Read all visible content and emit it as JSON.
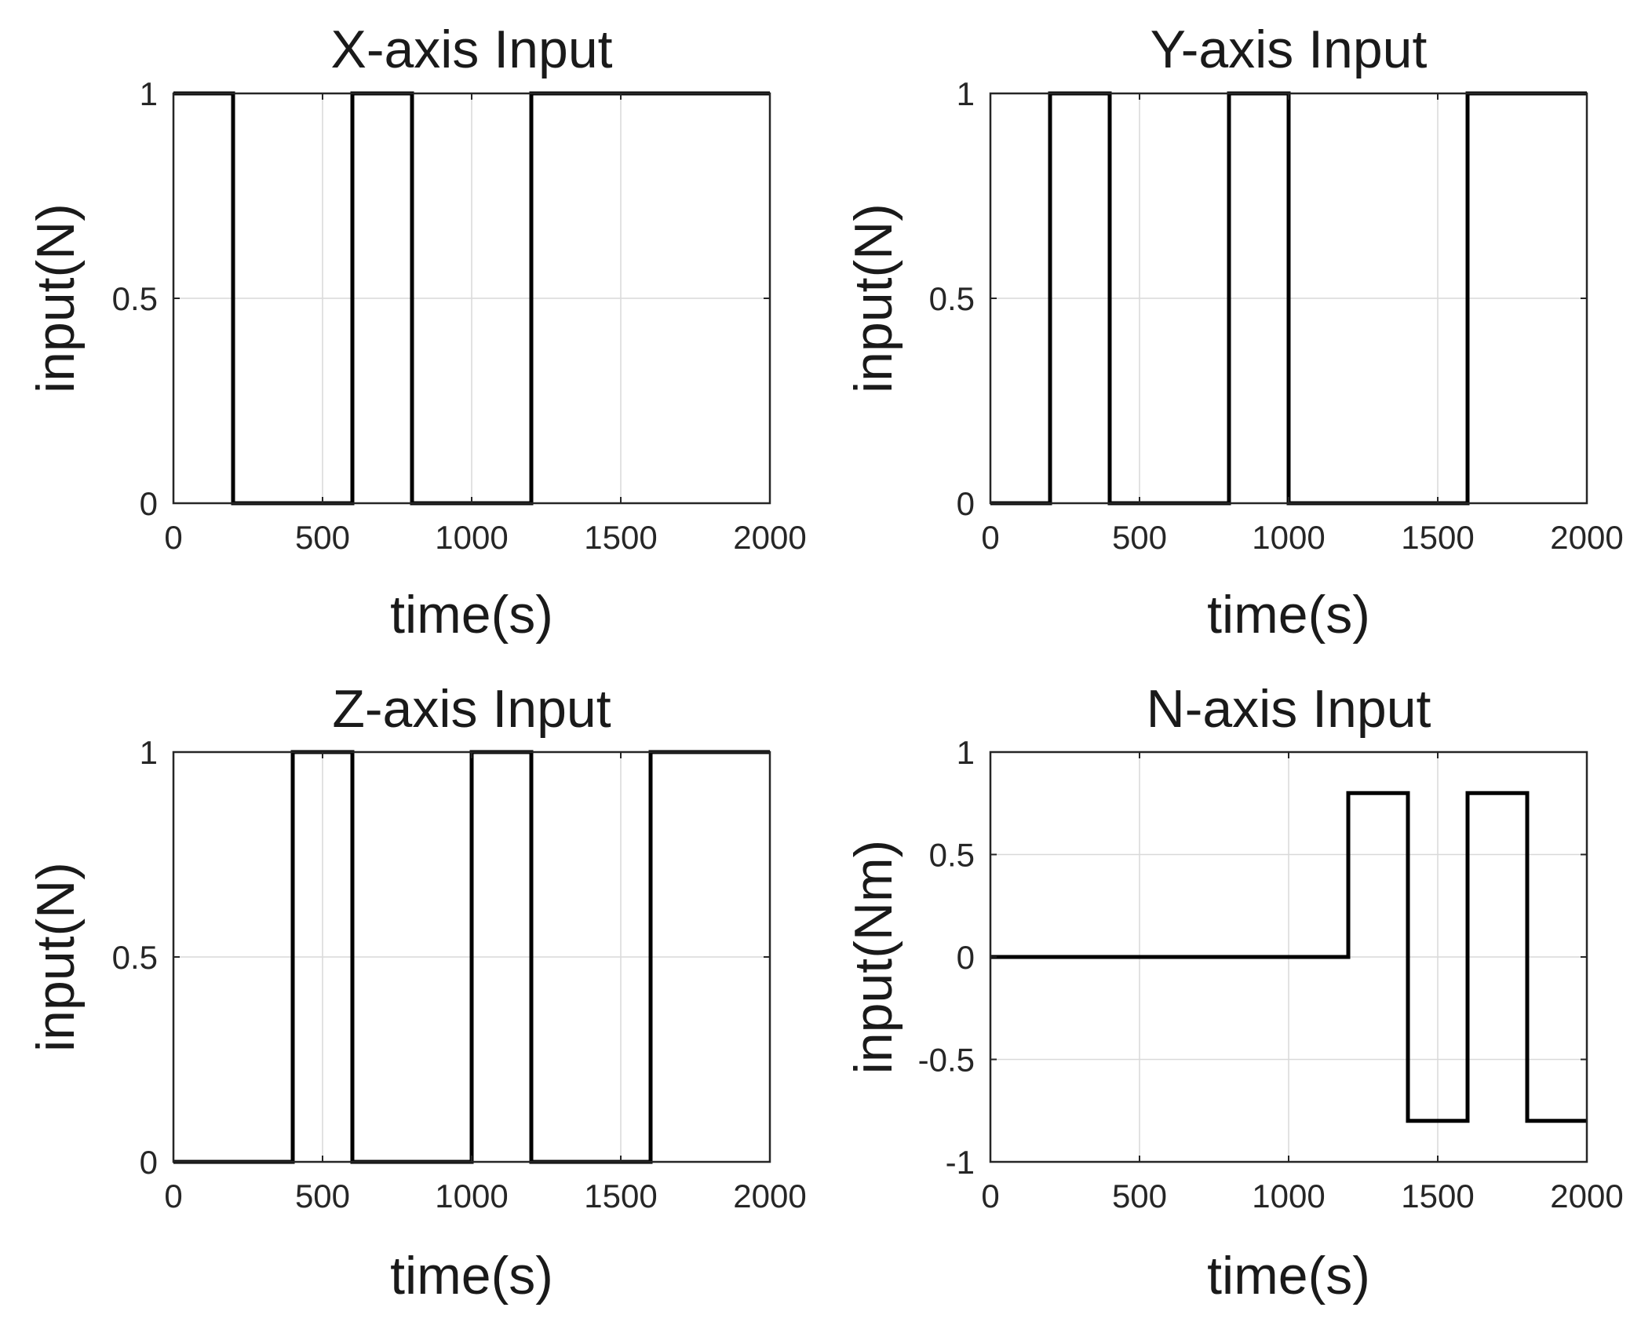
{
  "chart_data": [
    {
      "type": "line",
      "title": "X-axis Input",
      "xlabel": "time(s)",
      "ylabel": "input(N)",
      "xlim": [
        0,
        2000
      ],
      "ylim": [
        0,
        1
      ],
      "xticks": [
        0,
        500,
        1000,
        1500,
        2000
      ],
      "yticks": [
        0,
        0.5,
        1
      ],
      "xtick_labels": [
        "0",
        "500",
        "1000",
        "1500",
        "2000"
      ],
      "ytick_labels": [
        "0",
        "0.5",
        "1"
      ],
      "grid": true,
      "series": [
        {
          "color": "#000000",
          "points": [
            [
              0,
              1
            ],
            [
              200,
              1
            ],
            [
              200,
              0
            ],
            [
              600,
              0
            ],
            [
              600,
              1
            ],
            [
              800,
              1
            ],
            [
              800,
              0
            ],
            [
              1200,
              0
            ],
            [
              1200,
              1
            ],
            [
              2000,
              1
            ]
          ]
        }
      ]
    },
    {
      "type": "line",
      "title": "Y-axis Input",
      "xlabel": "time(s)",
      "ylabel": "input(N)",
      "xlim": [
        0,
        2000
      ],
      "ylim": [
        0,
        1
      ],
      "xticks": [
        0,
        500,
        1000,
        1500,
        2000
      ],
      "yticks": [
        0,
        0.5,
        1
      ],
      "xtick_labels": [
        "0",
        "500",
        "1000",
        "1500",
        "2000"
      ],
      "ytick_labels": [
        "0",
        "0.5",
        "1"
      ],
      "grid": true,
      "series": [
        {
          "color": "#000000",
          "points": [
            [
              0,
              0
            ],
            [
              200,
              0
            ],
            [
              200,
              1
            ],
            [
              400,
              1
            ],
            [
              400,
              0
            ],
            [
              800,
              0
            ],
            [
              800,
              1
            ],
            [
              1000,
              1
            ],
            [
              1000,
              0
            ],
            [
              1600,
              0
            ],
            [
              1600,
              1
            ],
            [
              2000,
              1
            ]
          ]
        }
      ]
    },
    {
      "type": "line",
      "title": "Z-axis Input",
      "xlabel": "time(s)",
      "ylabel": "input(N)",
      "xlim": [
        0,
        2000
      ],
      "ylim": [
        0,
        1
      ],
      "xticks": [
        0,
        500,
        1000,
        1500,
        2000
      ],
      "yticks": [
        0,
        0.5,
        1
      ],
      "xtick_labels": [
        "0",
        "500",
        "1000",
        "1500",
        "2000"
      ],
      "ytick_labels": [
        "0",
        "0.5",
        "1"
      ],
      "grid": true,
      "series": [
        {
          "color": "#000000",
          "points": [
            [
              0,
              0
            ],
            [
              400,
              0
            ],
            [
              400,
              1
            ],
            [
              600,
              1
            ],
            [
              600,
              0
            ],
            [
              1000,
              0
            ],
            [
              1000,
              1
            ],
            [
              1200,
              1
            ],
            [
              1200,
              0
            ],
            [
              1600,
              0
            ],
            [
              1600,
              1
            ],
            [
              2000,
              1
            ]
          ]
        }
      ]
    },
    {
      "type": "line",
      "title": "N-axis Input",
      "xlabel": "time(s)",
      "ylabel": "input(Nm)",
      "xlim": [
        0,
        2000
      ],
      "ylim": [
        -1,
        1
      ],
      "xticks": [
        0,
        500,
        1000,
        1500,
        2000
      ],
      "yticks": [
        -1,
        -0.5,
        0,
        0.5,
        1
      ],
      "xtick_labels": [
        "0",
        "500",
        "1000",
        "1500",
        "2000"
      ],
      "ytick_labels": [
        "-1",
        "-0.5",
        "0",
        "0.5",
        "1"
      ],
      "grid": true,
      "series": [
        {
          "color": "#000000",
          "points": [
            [
              0,
              0
            ],
            [
              1200,
              0
            ],
            [
              1200,
              0.8
            ],
            [
              1400,
              0.8
            ],
            [
              1400,
              -0.8
            ],
            [
              1600,
              -0.8
            ],
            [
              1600,
              0.8
            ],
            [
              1800,
              0.8
            ],
            [
              1800,
              -0.8
            ],
            [
              2000,
              -0.8
            ]
          ]
        }
      ]
    }
  ]
}
